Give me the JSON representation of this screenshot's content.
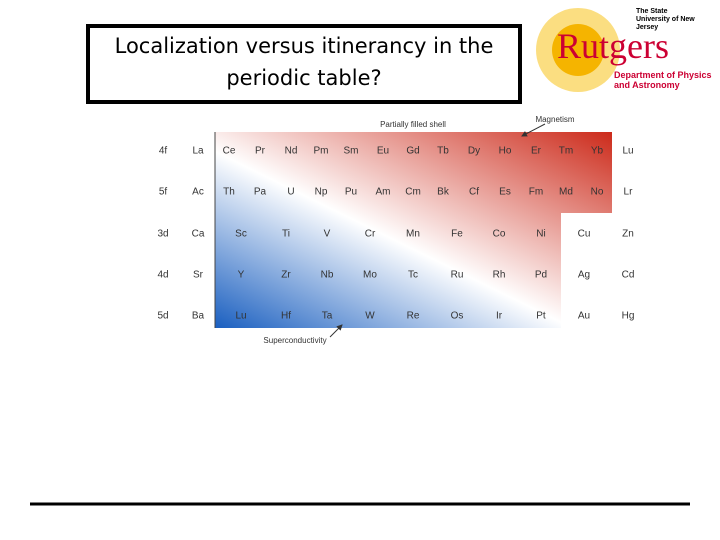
{
  "title": "Localization versus itinerancy in the periodic table?",
  "logo": {
    "university": "The State University of New Jersey",
    "name": "Rutgers",
    "department": "Department of Physics and Astronomy"
  },
  "table": {
    "header": "Partially filled shell",
    "rows": [
      {
        "label": "4f",
        "elements": [
          "La",
          "Ce",
          "Pr",
          "Nd",
          "Pm",
          "Sm",
          "Eu",
          "Gd",
          "Tb",
          "Dy",
          "Ho",
          "Er",
          "Tm",
          "Yb",
          "Lu"
        ]
      },
      {
        "label": "5f",
        "elements": [
          "Ac",
          "Th",
          "Pa",
          "U",
          "Np",
          "Pu",
          "Am",
          "Cm",
          "Bk",
          "Cf",
          "Es",
          "Fm",
          "Md",
          "No",
          "Lr"
        ]
      },
      {
        "label": "3d",
        "elements": [
          "Ca",
          "Sc",
          "Ti",
          "V",
          "Cr",
          "Mn",
          "Fe",
          "Co",
          "Ni",
          "Cu",
          "Zn"
        ]
      },
      {
        "label": "4d",
        "elements": [
          "Sr",
          "Y",
          "Zr",
          "Nb",
          "Mo",
          "Tc",
          "Ru",
          "Rh",
          "Pd",
          "Ag",
          "Cd"
        ]
      },
      {
        "label": "5d",
        "elements": [
          "Ba",
          "Lu",
          "Hf",
          "Ta",
          "W",
          "Re",
          "Os",
          "Ir",
          "Pt",
          "Au",
          "Hg"
        ]
      }
    ],
    "annotations": {
      "magnetism": "Magnetism",
      "superconductivity": "Superconductivity"
    }
  }
}
